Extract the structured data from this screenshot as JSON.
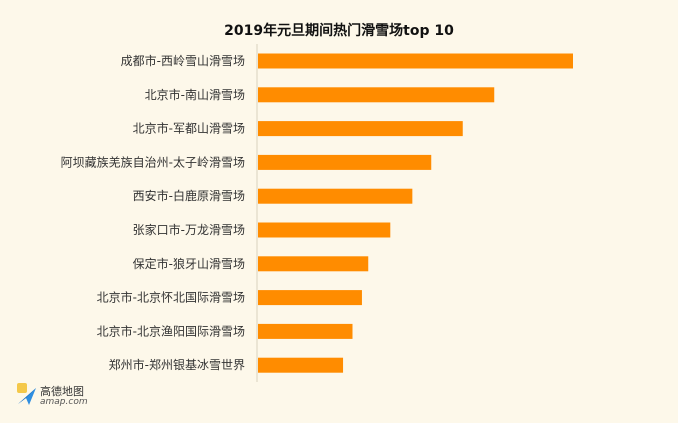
{
  "chart_data": {
    "type": "bar",
    "orientation": "horizontal",
    "title": "2019年元旦期间热门滑雪场top 10",
    "categories": [
      "成都市-西岭雪山滑雪场",
      "北京市-南山滑雪场",
      "北京市-军都山滑雪场",
      "阿坝藏族羌族自治州-太子岭滑雪场",
      "西安市-白鹿原滑雪场",
      "张家口市-万龙滑雪场",
      "保定市-狼牙山滑雪场",
      "北京市-北京怀北国际滑雪场",
      "北京市-北京渔阳国际滑雪场",
      "郑州市-郑州银基冰雪世界"
    ],
    "values": [
      100,
      75,
      65,
      55,
      49,
      42,
      35,
      33,
      30,
      27
    ],
    "xlim": [
      0,
      100
    ],
    "xlabel": "",
    "ylabel": "",
    "grid": false,
    "bar_color": "#ff8c00"
  },
  "logo": {
    "name": "高德地图",
    "url": "amap.com"
  }
}
